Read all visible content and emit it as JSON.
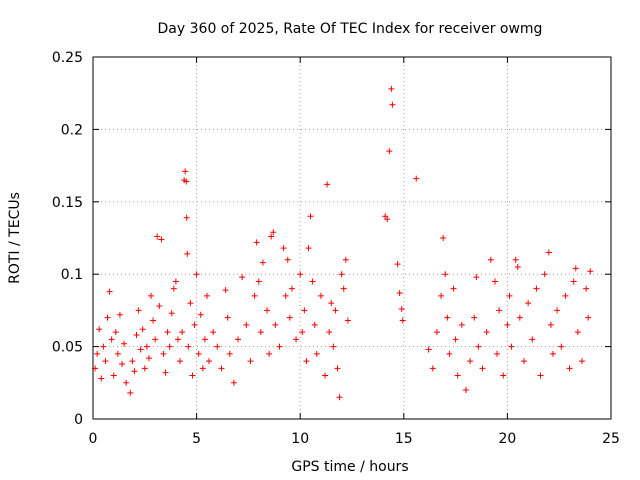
{
  "chart_data": {
    "type": "scatter",
    "title": "Day 360 of 2025, Rate Of TEC Index for receiver owmg",
    "xlabel": "GPS time / hours",
    "ylabel": "ROTI / TECUs",
    "xlim": [
      0,
      25
    ],
    "ylim": [
      0,
      0.25
    ],
    "x_ticks": [
      "0",
      "5",
      "10",
      "15",
      "20",
      "25"
    ],
    "y_ticks": [
      "0",
      "0.05",
      "0.1",
      "0.15",
      "0.2",
      "0.25"
    ],
    "grid": true,
    "legend": "none",
    "marker": "plus",
    "color": "#ff0000",
    "series": [
      {
        "points": [
          [
            0.1,
            0.035
          ],
          [
            0.2,
            0.045
          ],
          [
            0.3,
            0.062
          ],
          [
            0.4,
            0.028
          ],
          [
            0.5,
            0.05
          ],
          [
            0.6,
            0.04
          ],
          [
            0.7,
            0.07
          ],
          [
            0.8,
            0.088
          ],
          [
            0.9,
            0.055
          ],
          [
            1.0,
            0.03
          ],
          [
            1.1,
            0.06
          ],
          [
            1.2,
            0.045
          ],
          [
            1.3,
            0.072
          ],
          [
            1.4,
            0.038
          ],
          [
            1.5,
            0.052
          ],
          [
            1.6,
            0.025
          ],
          [
            1.8,
            0.018
          ],
          [
            1.9,
            0.04
          ],
          [
            2.0,
            0.033
          ],
          [
            2.1,
            0.058
          ],
          [
            2.2,
            0.075
          ],
          [
            2.3,
            0.048
          ],
          [
            2.4,
            0.062
          ],
          [
            2.5,
            0.035
          ],
          [
            2.6,
            0.05
          ],
          [
            2.7,
            0.042
          ],
          [
            2.8,
            0.085
          ],
          [
            2.9,
            0.068
          ],
          [
            3.0,
            0.055
          ],
          [
            3.1,
            0.126
          ],
          [
            3.2,
            0.078
          ],
          [
            3.3,
            0.124
          ],
          [
            3.4,
            0.045
          ],
          [
            3.5,
            0.032
          ],
          [
            3.6,
            0.06
          ],
          [
            3.7,
            0.05
          ],
          [
            3.8,
            0.073
          ],
          [
            3.9,
            0.09
          ],
          [
            4.0,
            0.095
          ],
          [
            4.1,
            0.055
          ],
          [
            4.2,
            0.04
          ],
          [
            4.3,
            0.06
          ],
          [
            4.4,
            0.165
          ],
          [
            4.45,
            0.171
          ],
          [
            4.5,
            0.164
          ],
          [
            4.52,
            0.139
          ],
          [
            4.55,
            0.114
          ],
          [
            4.6,
            0.05
          ],
          [
            4.7,
            0.08
          ],
          [
            4.8,
            0.03
          ],
          [
            4.9,
            0.065
          ],
          [
            5.0,
            0.1
          ],
          [
            5.1,
            0.045
          ],
          [
            5.2,
            0.072
          ],
          [
            5.3,
            0.035
          ],
          [
            5.4,
            0.055
          ],
          [
            5.5,
            0.085
          ],
          [
            5.6,
            0.04
          ],
          [
            5.8,
            0.06
          ],
          [
            6.0,
            0.05
          ],
          [
            6.2,
            0.035
          ],
          [
            6.4,
            0.089
          ],
          [
            6.5,
            0.07
          ],
          [
            6.6,
            0.045
          ],
          [
            6.8,
            0.025
          ],
          [
            7.0,
            0.055
          ],
          [
            7.2,
            0.098
          ],
          [
            7.4,
            0.065
          ],
          [
            7.6,
            0.04
          ],
          [
            7.8,
            0.085
          ],
          [
            7.9,
            0.122
          ],
          [
            8.0,
            0.095
          ],
          [
            8.1,
            0.06
          ],
          [
            8.2,
            0.108
          ],
          [
            8.4,
            0.075
          ],
          [
            8.5,
            0.045
          ],
          [
            8.6,
            0.126
          ],
          [
            8.7,
            0.129
          ],
          [
            8.8,
            0.065
          ],
          [
            9.0,
            0.05
          ],
          [
            9.2,
            0.118
          ],
          [
            9.3,
            0.085
          ],
          [
            9.4,
            0.11
          ],
          [
            9.5,
            0.07
          ],
          [
            9.6,
            0.09
          ],
          [
            9.8,
            0.055
          ],
          [
            10.0,
            0.1
          ],
          [
            10.1,
            0.06
          ],
          [
            10.2,
            0.075
          ],
          [
            10.3,
            0.04
          ],
          [
            10.4,
            0.118
          ],
          [
            10.5,
            0.14
          ],
          [
            10.6,
            0.095
          ],
          [
            10.7,
            0.065
          ],
          [
            10.8,
            0.045
          ],
          [
            11.0,
            0.085
          ],
          [
            11.2,
            0.03
          ],
          [
            11.3,
            0.162
          ],
          [
            11.4,
            0.06
          ],
          [
            11.5,
            0.08
          ],
          [
            11.6,
            0.05
          ],
          [
            11.7,
            0.075
          ],
          [
            11.8,
            0.035
          ],
          [
            11.9,
            0.015
          ],
          [
            12.0,
            0.1
          ],
          [
            12.1,
            0.09
          ],
          [
            12.2,
            0.11
          ],
          [
            12.3,
            0.068
          ],
          [
            14.1,
            0.14
          ],
          [
            14.2,
            0.138
          ],
          [
            14.3,
            0.185
          ],
          [
            14.4,
            0.228
          ],
          [
            14.45,
            0.217
          ],
          [
            14.7,
            0.107
          ],
          [
            14.8,
            0.087
          ],
          [
            14.9,
            0.076
          ],
          [
            14.95,
            0.068
          ],
          [
            15.6,
            0.166
          ],
          [
            16.2,
            0.048
          ],
          [
            16.4,
            0.035
          ],
          [
            16.6,
            0.06
          ],
          [
            16.8,
            0.085
          ],
          [
            16.9,
            0.125
          ],
          [
            17.0,
            0.1
          ],
          [
            17.1,
            0.07
          ],
          [
            17.2,
            0.045
          ],
          [
            17.4,
            0.09
          ],
          [
            17.5,
            0.055
          ],
          [
            17.6,
            0.03
          ],
          [
            17.8,
            0.065
          ],
          [
            18.0,
            0.02
          ],
          [
            18.2,
            0.04
          ],
          [
            18.4,
            0.07
          ],
          [
            18.5,
            0.098
          ],
          [
            18.6,
            0.05
          ],
          [
            18.8,
            0.035
          ],
          [
            19.0,
            0.06
          ],
          [
            19.2,
            0.11
          ],
          [
            19.4,
            0.095
          ],
          [
            19.5,
            0.045
          ],
          [
            19.6,
            0.075
          ],
          [
            19.8,
            0.03
          ],
          [
            20.0,
            0.065
          ],
          [
            20.1,
            0.085
          ],
          [
            20.2,
            0.05
          ],
          [
            20.4,
            0.11
          ],
          [
            20.5,
            0.105
          ],
          [
            20.6,
            0.07
          ],
          [
            20.8,
            0.04
          ],
          [
            21.0,
            0.08
          ],
          [
            21.2,
            0.055
          ],
          [
            21.4,
            0.09
          ],
          [
            21.6,
            0.03
          ],
          [
            21.8,
            0.1
          ],
          [
            22.0,
            0.115
          ],
          [
            22.1,
            0.065
          ],
          [
            22.2,
            0.045
          ],
          [
            22.4,
            0.075
          ],
          [
            22.6,
            0.05
          ],
          [
            22.8,
            0.085
          ],
          [
            23.0,
            0.035
          ],
          [
            23.2,
            0.095
          ],
          [
            23.3,
            0.104
          ],
          [
            23.4,
            0.06
          ],
          [
            23.6,
            0.04
          ],
          [
            23.8,
            0.09
          ],
          [
            23.9,
            0.07
          ],
          [
            24.0,
            0.102
          ]
        ]
      }
    ]
  }
}
